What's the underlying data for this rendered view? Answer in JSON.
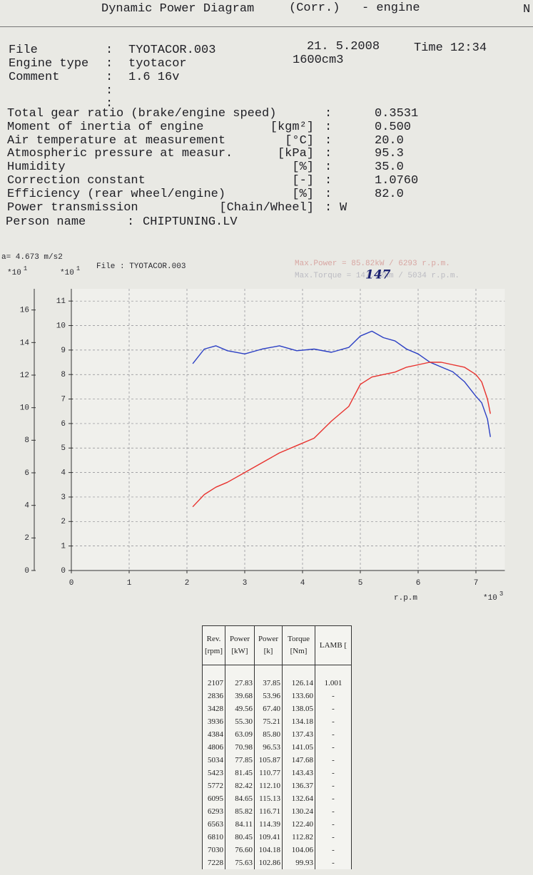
{
  "separator": ":",
  "header": {
    "title": "Dynamic Power Diagram",
    "mode": "(Corr.)",
    "suffix": "- engine",
    "corner": "N"
  },
  "info": {
    "fields": [
      {
        "label": "File",
        "value": "TYOTACOR.003"
      },
      {
        "label": "Engine type",
        "value": "tyotacor"
      },
      {
        "label": "Comment",
        "value": "1.6 16v"
      }
    ],
    "date": "21. 5.2008",
    "time": "Time 12:34",
    "displacement": "1600cm3"
  },
  "params": [
    {
      "label": "Total gear ratio (brake/engine speed)",
      "value": "0.3531"
    },
    {
      "label": "Moment of inertia of engine",
      "unit": "[kgm²]",
      "value": "0.500"
    },
    {
      "label": "Air temperature at measurement",
      "unit": "[°C]",
      "value": "20.0"
    },
    {
      "label": "Atmospheric pressure at measur.",
      "unit": "[kPa]",
      "value": "95.3"
    },
    {
      "label": "Humidity",
      "unit": "[%]",
      "value": "35.0"
    },
    {
      "label": "Correction constant",
      "unit": "[-]",
      "value": "1.0760"
    },
    {
      "label": "Efficiency (rear wheel/engine)",
      "unit": "[%]",
      "value": "82.0"
    },
    {
      "label": "Power transmission",
      "unit": "[Chain/Wheel]",
      "value": "W"
    }
  ],
  "person": {
    "label": "Person name",
    "value": "CHIPTUNING.LV"
  },
  "chart_data": {
    "type": "line",
    "acceleration": "a= 4.673 m/s2",
    "file_label": "File :  TYOTACOR.003",
    "max_power": "Max.Power = 85.82kW / 6293 r.p.m.",
    "max_torque": "Max.Torque = 147.68Nm / 5034 r.p.m.",
    "handwritten": "147",
    "multiplier": "*10",
    "y_exponent": "1",
    "y2_exponent": "1",
    "x_label": "r.p.m",
    "x_exponent": "3",
    "x": [
      2.1,
      2.3,
      2.5,
      2.7,
      3.0,
      3.3,
      3.6,
      3.9,
      4.2,
      4.5,
      4.8,
      5.0,
      5.2,
      5.4,
      5.6,
      5.8,
      6.0,
      6.2,
      6.4,
      6.6,
      6.8,
      7.0,
      7.1,
      7.2,
      7.25
    ],
    "series": [
      {
        "color": "#2b3fc4",
        "axis": "y",
        "values": [
          12.7,
          13.6,
          13.8,
          13.5,
          13.3,
          13.6,
          13.8,
          13.5,
          13.6,
          13.4,
          13.7,
          14.4,
          14.7,
          14.3,
          14.1,
          13.6,
          13.3,
          12.8,
          12.5,
          12.2,
          11.6,
          10.7,
          10.3,
          9.3,
          8.2
        ]
      },
      {
        "color": "#e8322e",
        "axis": "y2",
        "values": [
          2.6,
          3.1,
          3.4,
          3.6,
          4.0,
          4.4,
          4.8,
          5.1,
          5.4,
          6.1,
          6.7,
          7.6,
          7.9,
          8.0,
          8.1,
          8.3,
          8.4,
          8.5,
          8.5,
          8.4,
          8.3,
          8.0,
          7.7,
          7.0,
          6.4
        ]
      }
    ],
    "xlim": [
      0,
      7.5
    ],
    "xticks": [
      0,
      1,
      2,
      3,
      4,
      5,
      6,
      7
    ],
    "ylim": [
      0,
      17.3
    ],
    "yticks": [
      0,
      2,
      4,
      6,
      8,
      10,
      12,
      14,
      16
    ],
    "y2lim": [
      0,
      11.5
    ],
    "y2ticks": [
      0,
      1,
      2,
      3,
      4,
      5,
      6,
      7,
      8,
      9,
      10,
      11
    ],
    "grid": true
  },
  "table": {
    "header": [
      [
        "Rev.",
        "[rpm]"
      ],
      [
        "Power",
        "[kW]"
      ],
      [
        "Power",
        "[k]"
      ],
      [
        "Torque",
        "[Nm]"
      ],
      [
        "LAMB [",
        ""
      ]
    ],
    "rows": [
      [
        "2107",
        "27.83",
        "37.85",
        "126.14",
        "1.001"
      ],
      [
        "2836",
        "39.68",
        "53.96",
        "133.60",
        "-"
      ],
      [
        "3428",
        "49.56",
        "67.40",
        "138.05",
        "-"
      ],
      [
        "3936",
        "55.30",
        "75.21",
        "134.18",
        "-"
      ],
      [
        "4384",
        "63.09",
        "85.80",
        "137.43",
        "-"
      ],
      [
        "4806",
        "70.98",
        "96.53",
        "141.05",
        "-"
      ],
      [
        "5034",
        "77.85",
        "105.87",
        "147.68",
        "-"
      ],
      [
        "5423",
        "81.45",
        "110.77",
        "143.43",
        "-"
      ],
      [
        "5772",
        "82.42",
        "112.10",
        "136.37",
        "-"
      ],
      [
        "6095",
        "84.65",
        "115.13",
        "132.64",
        "-"
      ],
      [
        "6293",
        "85.82",
        "116.71",
        "130.24",
        "-"
      ],
      [
        "6563",
        "84.11",
        "114.39",
        "122.40",
        "-"
      ],
      [
        "6810",
        "80.45",
        "109.41",
        "112.82",
        "-"
      ],
      [
        "7030",
        "76.60",
        "104.18",
        "104.06",
        "-"
      ],
      [
        "7228",
        "75.63",
        "102.86",
        "99.93",
        "-"
      ]
    ]
  }
}
